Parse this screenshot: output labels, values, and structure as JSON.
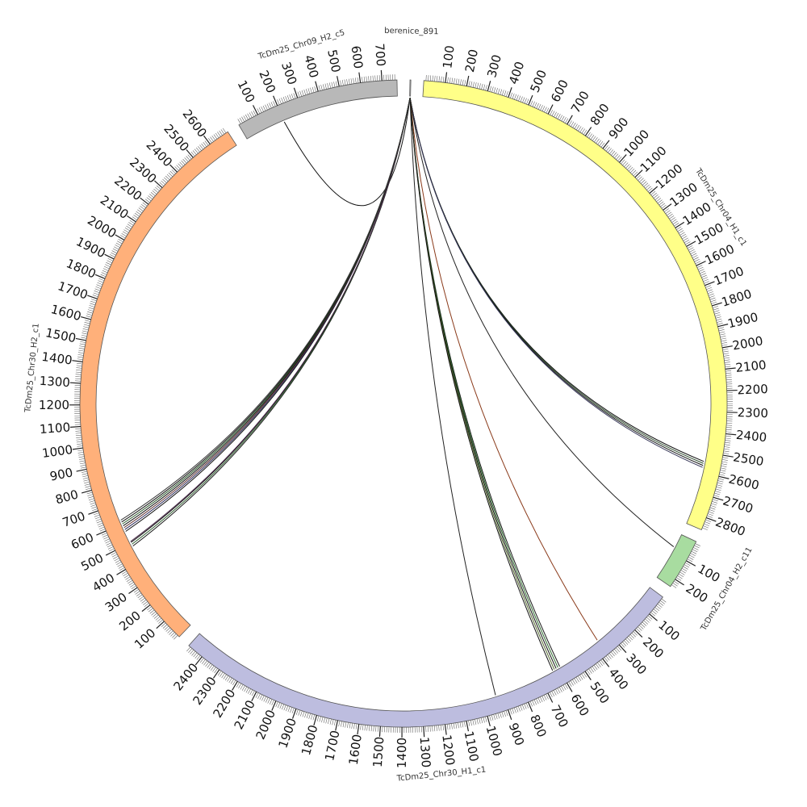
{
  "diagram": {
    "segments": [
      {
        "name": "berenice_891",
        "length": 4,
        "color": "#ffffff",
        "label_offset": 0
      },
      {
        "name": "TcDm25_Chr04_H1_c1",
        "length": 2860,
        "color": "#ffff88",
        "label_offset": 0
      },
      {
        "name": "TcDm25_Chr04_H2_c11",
        "length": 240,
        "color": "#a8dca0",
        "label_offset": 0
      },
      {
        "name": "TcDm25_Chr30_H1_c1",
        "length": 2480,
        "color": "#bdbddf",
        "label_offset": 0
      },
      {
        "name": "TcDm25_Chr30_H2_c1",
        "length": 2700,
        "color": "#ffb07a",
        "label_offset": 0
      },
      {
        "name": "TcDm25_Chr09_H2_c5",
        "length": 770,
        "color": "#b8b8b8",
        "label_offset": 0
      }
    ],
    "major_tick_step": 100,
    "minor_tick_step": 10,
    "links": [
      {
        "target": "TcDm25_Chr09_H2_c5",
        "pos": 200,
        "color": "#111111"
      },
      {
        "target": "TcDm25_Chr30_H2_c1",
        "pos": 480,
        "color": "#1a1a1a"
      },
      {
        "target": "TcDm25_Chr30_H2_c1",
        "pos": 490,
        "color": "#2e5d2e"
      },
      {
        "target": "TcDm25_Chr30_H2_c1",
        "pos": 500,
        "color": "#111111"
      },
      {
        "target": "TcDm25_Chr30_H2_c1",
        "pos": 505,
        "color": "#4a2a4a"
      },
      {
        "target": "TcDm25_Chr30_H2_c1",
        "pos": 560,
        "color": "#111111"
      },
      {
        "target": "TcDm25_Chr30_H2_c1",
        "pos": 570,
        "color": "#2a2a5a"
      },
      {
        "target": "TcDm25_Chr30_H2_c1",
        "pos": 580,
        "color": "#5a2a2a"
      },
      {
        "target": "TcDm25_Chr30_H2_c1",
        "pos": 590,
        "color": "#111111"
      },
      {
        "target": "TcDm25_Chr30_H2_c1",
        "pos": 600,
        "color": "#2e5d2e"
      },
      {
        "target": "TcDm25_Chr30_H2_c1",
        "pos": 610,
        "color": "#111111"
      },
      {
        "target": "TcDm25_Chr30_H2_c1",
        "pos": 620,
        "color": "#3a3a3a"
      },
      {
        "target": "TcDm25_Chr04_H1_c1",
        "pos": 2545,
        "color": "#111111"
      },
      {
        "target": "TcDm25_Chr04_H1_c1",
        "pos": 2555,
        "color": "#2a4a2a"
      },
      {
        "target": "TcDm25_Chr04_H1_c1",
        "pos": 2565,
        "color": "#111111"
      },
      {
        "target": "TcDm25_Chr04_H1_c1",
        "pos": 2575,
        "color": "#333355"
      },
      {
        "target": "TcDm25_Chr04_H2_c11",
        "pos": 70,
        "color": "#222222"
      },
      {
        "target": "TcDm25_Chr30_H1_c1",
        "pos": 365,
        "color": "#8a3a1a"
      },
      {
        "target": "TcDm25_Chr30_H1_c1",
        "pos": 590,
        "color": "#1a1a1a"
      },
      {
        "target": "TcDm25_Chr30_H1_c1",
        "pos": 600,
        "color": "#2e6d2e"
      },
      {
        "target": "TcDm25_Chr30_H1_c1",
        "pos": 610,
        "color": "#111111"
      },
      {
        "target": "TcDm25_Chr30_H1_c1",
        "pos": 620,
        "color": "#556b2f"
      },
      {
        "target": "TcDm25_Chr30_H1_c1",
        "pos": 630,
        "color": "#111111"
      },
      {
        "target": "TcDm25_Chr30_H1_c1",
        "pos": 935,
        "color": "#222222"
      }
    ]
  }
}
